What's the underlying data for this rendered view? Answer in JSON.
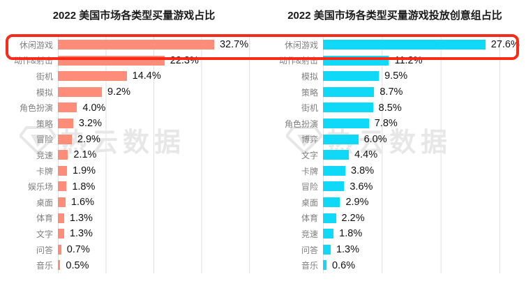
{
  "watermark": {
    "text": "热云数据"
  },
  "highlight": {
    "color": "#fa2a18",
    "note": "red rounded box around top category row of both charts"
  },
  "chart_data": [
    {
      "type": "bar",
      "orientation": "horizontal",
      "title": "2022 美国市场各类型买量游戏占比",
      "bar_color": "#fd8d78",
      "axis_max": 40,
      "gridline_interval": 10,
      "grid": true,
      "value_suffix": "%",
      "categories": [
        "休闲游戏",
        "动作&射击",
        "街机",
        "模拟",
        "角色扮演",
        "策略",
        "冒险",
        "竞速",
        "卡牌",
        "娱乐场",
        "桌面",
        "体育",
        "文字",
        "问答",
        "音乐"
      ],
      "values": [
        32.7,
        22.3,
        14.4,
        9.2,
        4.0,
        3.2,
        2.9,
        2.1,
        1.9,
        1.8,
        1.6,
        1.3,
        1.3,
        0.7,
        0.5
      ],
      "data_labels": [
        "32.7%",
        "22.3%",
        "14.4%",
        "9.2%",
        "4.0%",
        "3.2%",
        "2.9%",
        "2.1%",
        "1.9%",
        "1.8%",
        "1.6%",
        "1.3%",
        "1.3%",
        "0.7%",
        "0.5%"
      ]
    },
    {
      "type": "bar",
      "orientation": "horizontal",
      "title": "2022 美国市场各类型买量游戏投放创意组占比",
      "bar_color": "#10d9f7",
      "axis_max": 30,
      "gridline_interval": 10,
      "grid": true,
      "value_suffix": "%",
      "categories": [
        "休闲游戏",
        "动作&射击",
        "模拟",
        "策略",
        "街机",
        "角色扮演",
        "博弈",
        "文字",
        "卡牌",
        "冒险",
        "桌面",
        "体育",
        "竞速",
        "问答",
        "音乐"
      ],
      "values": [
        27.6,
        11.2,
        9.5,
        8.7,
        8.5,
        7.8,
        6.0,
        4.4,
        3.8,
        3.6,
        2.9,
        2.2,
        1.8,
        1.3,
        0.6
      ],
      "data_labels": [
        "27.6%",
        "11.2%",
        "9.5%",
        "8.7%",
        "8.5%",
        "7.8%",
        "6.0%",
        "4.4%",
        "3.8%",
        "3.6%",
        "2.9%",
        "2.2%",
        "1.8%",
        "1.3%",
        "0.6%"
      ]
    }
  ]
}
